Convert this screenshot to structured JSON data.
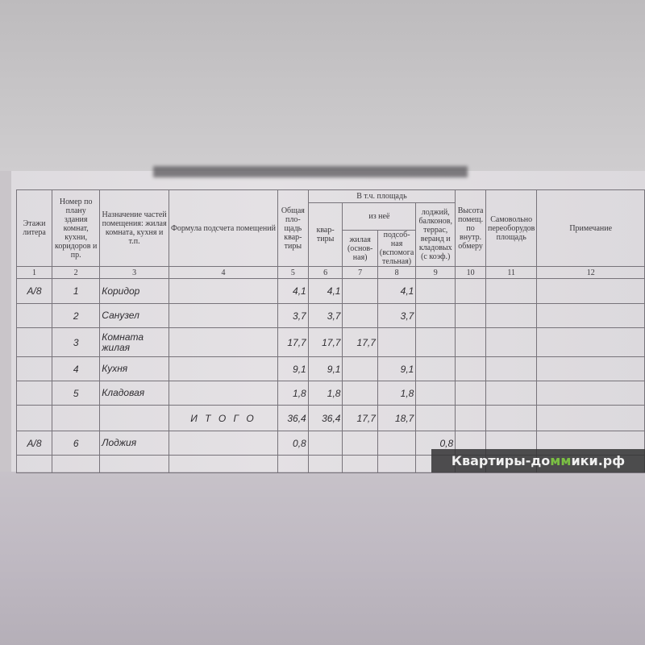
{
  "header": {
    "col1": "Этажи литера",
    "col2": "Номер по плану здания комнат, кухни, коридоров и пр.",
    "col3": "Назначение частей помещения: жилая комната, кухня и т.п.",
    "col4": "Формула подсчета помещений",
    "col5": "Общая пло-щадь квар-тиры",
    "group": "В т.ч. площадь",
    "col6": "квар-тиры",
    "subgroup": "из неё",
    "col7": "жилая (основ-ная)",
    "col8": "подсоб-ная (вспомога тельная)",
    "col9": "лоджий, балконов, террас, веранд и кладовых (с коэф.)",
    "col10": "Высота помещ. по внутр. обмеру",
    "col11": "Самовольно переоборудов площадь",
    "col12": "Примечание"
  },
  "column_numbers": [
    "1",
    "2",
    "3",
    "4",
    "5",
    "6",
    "7",
    "8",
    "9",
    "10",
    "11",
    "12"
  ],
  "rows": [
    {
      "floor": "А/8",
      "no": "1",
      "name": "Коридор",
      "formula": "",
      "total": "4,1",
      "apt": "4,1",
      "living": "",
      "aux": "4,1",
      "loggia": ""
    },
    {
      "floor": "",
      "no": "2",
      "name": "Санузел",
      "formula": "",
      "total": "3,7",
      "apt": "3,7",
      "living": "",
      "aux": "3,7",
      "loggia": ""
    },
    {
      "floor": "",
      "no": "3",
      "name": "Комната жилая",
      "formula": "",
      "total": "17,7",
      "apt": "17,7",
      "living": "17,7",
      "aux": "",
      "loggia": ""
    },
    {
      "floor": "",
      "no": "4",
      "name": "Кухня",
      "formula": "",
      "total": "9,1",
      "apt": "9,1",
      "living": "",
      "aux": "9,1",
      "loggia": ""
    },
    {
      "floor": "",
      "no": "5",
      "name": "Кладовая",
      "formula": "",
      "total": "1,8",
      "apt": "1,8",
      "living": "",
      "aux": "1,8",
      "loggia": ""
    },
    {
      "floor": "",
      "no": "",
      "name": "",
      "formula": "И Т О Г О",
      "total": "36,4",
      "apt": "36,4",
      "living": "17,7",
      "aux": "18,7",
      "loggia": ""
    },
    {
      "floor": "А/8",
      "no": "6",
      "name": "Лоджия",
      "formula": "",
      "total": "0,8",
      "apt": "",
      "living": "",
      "aux": "",
      "loggia": "0,8"
    }
  ],
  "watermark": {
    "text_before": "Квартиры-до",
    "text_mark": "мм",
    "text_after": "ики.рф",
    "accent": "#7bc043"
  }
}
